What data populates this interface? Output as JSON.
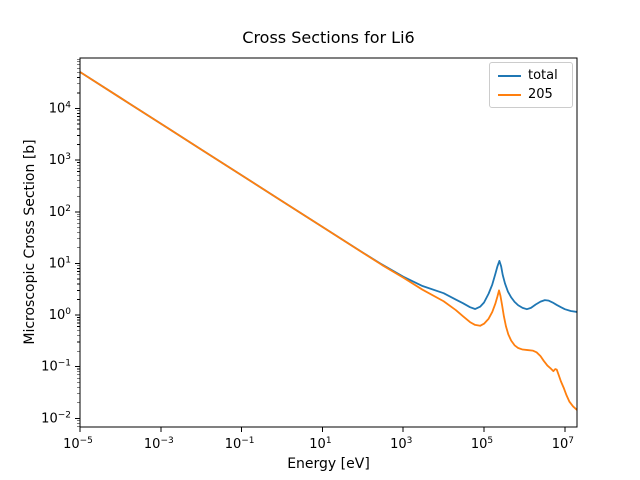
{
  "figure": {
    "background": "#ffffff",
    "frame_color": "#000000",
    "text_color": "#000000",
    "legend_border_color": "#cccccc"
  },
  "chart_data": {
    "type": "line",
    "title": "Cross Sections for Li6",
    "xlabel": "Energy [eV]",
    "ylabel": "Microscopic Cross Section [b]",
    "xscale": "log",
    "yscale": "log",
    "xlim": [
      1e-05,
      20000000.0
    ],
    "ylim": [
      0.0068,
      95000
    ],
    "x_tick_exponents": [
      -5,
      -3,
      -1,
      1,
      3,
      5,
      7
    ],
    "y_tick_exponents": [
      4,
      3,
      2,
      1,
      0,
      -1,
      -2
    ],
    "grid": false,
    "legend_position": "upper right",
    "series": [
      {
        "name": "total",
        "color": "#1f77b4",
        "points": [
          [
            1e-05,
            51000
          ],
          [
            0.0001,
            16100
          ],
          [
            0.001,
            5100
          ],
          [
            0.01,
            1610
          ],
          [
            0.1,
            510
          ],
          [
            1,
            161
          ],
          [
            10,
            51
          ],
          [
            100,
            16.2
          ],
          [
            300,
            9.5
          ],
          [
            1000,
            5.55
          ],
          [
            3000,
            3.65
          ],
          [
            10000,
            2.65
          ],
          [
            20000,
            2.0
          ],
          [
            30000,
            1.7
          ],
          [
            45000,
            1.42
          ],
          [
            60000,
            1.31
          ],
          [
            80000,
            1.45
          ],
          [
            100000,
            1.75
          ],
          [
            130000,
            2.6
          ],
          [
            160000,
            3.9
          ],
          [
            190000,
            6.2
          ],
          [
            215000,
            8.8
          ],
          [
            240000,
            11.2
          ],
          [
            265000,
            8.8
          ],
          [
            290000,
            6.0
          ],
          [
            330000,
            4.1
          ],
          [
            390000,
            2.85
          ],
          [
            470000,
            2.2
          ],
          [
            570000,
            1.8
          ],
          [
            700000,
            1.55
          ],
          [
            900000,
            1.38
          ],
          [
            1150000,
            1.3
          ],
          [
            1450000,
            1.38
          ],
          [
            1900000,
            1.6
          ],
          [
            2500000,
            1.82
          ],
          [
            3200000,
            1.95
          ],
          [
            4000000,
            1.9
          ],
          [
            5000000,
            1.75
          ],
          [
            6300000,
            1.57
          ],
          [
            8000000,
            1.42
          ],
          [
            10000000,
            1.3
          ],
          [
            14000000,
            1.2
          ],
          [
            20000000,
            1.15
          ]
        ]
      },
      {
        "name": "205",
        "color": "#ff7f0e",
        "points": [
          [
            1e-05,
            51000
          ],
          [
            0.0001,
            16100
          ],
          [
            0.001,
            5100
          ],
          [
            0.01,
            1610
          ],
          [
            0.1,
            510
          ],
          [
            1,
            161
          ],
          [
            10,
            51
          ],
          [
            100,
            16.1
          ],
          [
            300,
            9.3
          ],
          [
            1000,
            5.3
          ],
          [
            3000,
            3.1
          ],
          [
            10000,
            1.85
          ],
          [
            20000,
            1.25
          ],
          [
            30000,
            0.95
          ],
          [
            45000,
            0.73
          ],
          [
            60000,
            0.645
          ],
          [
            80000,
            0.62
          ],
          [
            100000,
            0.68
          ],
          [
            130000,
            0.85
          ],
          [
            160000,
            1.15
          ],
          [
            190000,
            1.65
          ],
          [
            215000,
            2.3
          ],
          [
            235000,
            3.0
          ],
          [
            255000,
            2.35
          ],
          [
            280000,
            1.55
          ],
          [
            310000,
            0.95
          ],
          [
            350000,
            0.6
          ],
          [
            400000,
            0.42
          ],
          [
            470000,
            0.32
          ],
          [
            570000,
            0.26
          ],
          [
            700000,
            0.23
          ],
          [
            900000,
            0.215
          ],
          [
            1200000,
            0.21
          ],
          [
            1600000,
            0.205
          ],
          [
            2000000,
            0.19
          ],
          [
            2500000,
            0.16
          ],
          [
            3000000,
            0.13
          ],
          [
            3700000,
            0.105
          ],
          [
            4500000,
            0.092
          ],
          [
            5200000,
            0.082
          ],
          [
            5800000,
            0.09
          ],
          [
            6300000,
            0.088
          ],
          [
            7000000,
            0.07
          ],
          [
            8000000,
            0.052
          ],
          [
            9500000,
            0.038
          ],
          [
            11000000,
            0.028
          ],
          [
            13000000,
            0.021
          ],
          [
            16000000,
            0.017
          ],
          [
            20000000,
            0.0145
          ]
        ]
      }
    ]
  }
}
